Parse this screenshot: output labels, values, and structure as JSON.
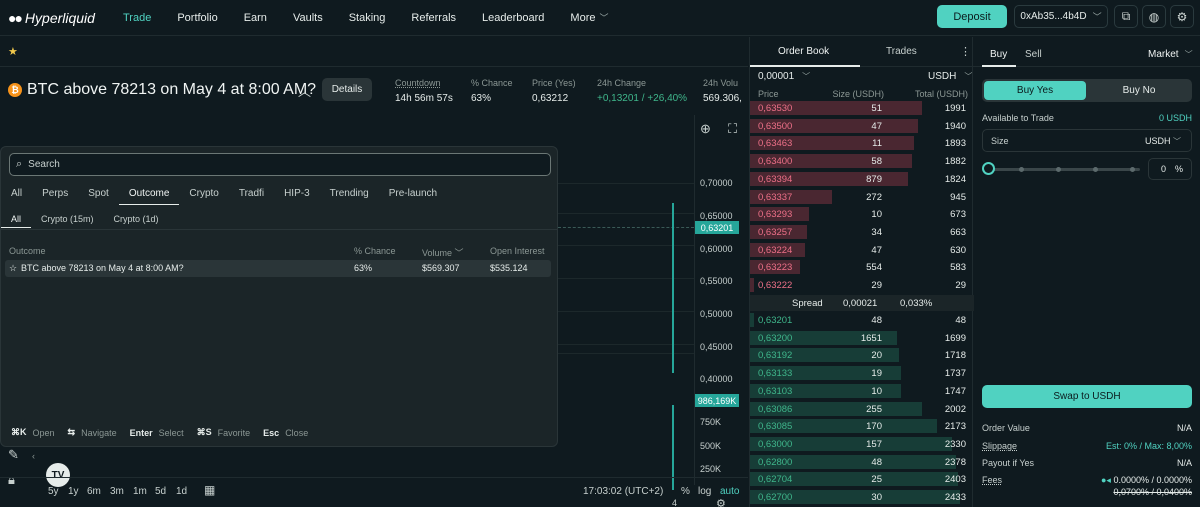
{
  "nav": {
    "brand": "Hyperliquid",
    "items": [
      "Trade",
      "Portfolio",
      "Earn",
      "Vaults",
      "Staking",
      "Referrals",
      "Leaderboard",
      "More"
    ],
    "deposit": "Deposit",
    "wallet": "0xAb35...4b4D",
    "icons": [
      "window-icon",
      "globe-icon",
      "settings-icon"
    ]
  },
  "market": {
    "title": "BTC above 78213 on May 4 at 8:00 AM?",
    "details": "Details",
    "stats": [
      {
        "label": "Countdown",
        "value": "14h 56m 57s"
      },
      {
        "label": "% Chance",
        "value": "63%"
      },
      {
        "label": "Price (Yes)",
        "value": "0,63212"
      },
      {
        "label": "24h Change",
        "value": "+0,13201 / +26,40%"
      },
      {
        "label": "24h Volu",
        "value": "569.306,"
      }
    ]
  },
  "chart": {
    "price_ticks": [
      "0,70000",
      "0,65000",
      "0,60000",
      "0,55000",
      "0,50000",
      "0,45000",
      "0,40000"
    ],
    "last_price": "0,63201",
    "volume_badge": "986,169K",
    "volume_ticks": [
      "750K",
      "500K",
      "250K"
    ],
    "x_tick": "4",
    "ranges": [
      "5y",
      "1y",
      "6m",
      "3m",
      "1m",
      "5d",
      "1d"
    ],
    "clock": "17:03:02 (UTC+2)",
    "percent": "%",
    "log": "log",
    "auto": "auto"
  },
  "search": {
    "placeholder": "Search",
    "categories": [
      "All",
      "Perps",
      "Spot",
      "Outcome",
      "Crypto",
      "Tradfi",
      "HIP-3",
      "Trending",
      "Pre-launch"
    ],
    "subcategories": [
      "All",
      "Crypto (15m)",
      "Crypto (1d)"
    ],
    "columns": [
      "Outcome",
      "% Chance",
      "Volume",
      "Open Interest"
    ],
    "result": {
      "name": "BTC above 78213 on May 4 at 8:00 AM?",
      "chance": "63%",
      "volume": "$569.307",
      "open_interest": "$535.124"
    },
    "shortcuts": [
      {
        "key": "⌘K",
        "label": "Open"
      },
      {
        "key": "⇆",
        "label": "Navigate"
      },
      {
        "key": "Enter",
        "label": "Select"
      },
      {
        "key": "⌘S",
        "label": "Favorite"
      },
      {
        "key": "Esc",
        "label": "Close"
      }
    ]
  },
  "orderbook": {
    "tabs": [
      "Order Book",
      "Trades"
    ],
    "tick_size": "0,00001",
    "unit": "USDH",
    "headers": [
      "Price",
      "Size (USDH)",
      "Total (USDH)"
    ],
    "asks": [
      {
        "price": "0,63530",
        "size": "51",
        "total": "1991",
        "depth": 0.82
      },
      {
        "price": "0,63500",
        "size": "47",
        "total": "1940",
        "depth": 0.8
      },
      {
        "price": "0,63463",
        "size": "11",
        "total": "1893",
        "depth": 0.78
      },
      {
        "price": "0,63400",
        "size": "58",
        "total": "1882",
        "depth": 0.77
      },
      {
        "price": "0,63394",
        "size": "879",
        "total": "1824",
        "depth": 0.75
      },
      {
        "price": "0,63337",
        "size": "272",
        "total": "945",
        "depth": 0.39
      },
      {
        "price": "0,63293",
        "size": "10",
        "total": "673",
        "depth": 0.28
      },
      {
        "price": "0,63257",
        "size": "34",
        "total": "663",
        "depth": 0.27
      },
      {
        "price": "0,63224",
        "size": "47",
        "total": "630",
        "depth": 0.26
      },
      {
        "price": "0,63223",
        "size": "554",
        "total": "583",
        "depth": 0.24
      },
      {
        "price": "0,63222",
        "size": "29",
        "total": "29",
        "depth": 0.01
      }
    ],
    "spread": {
      "label": "Spread",
      "value": "0,00021",
      "percent": "0,033%"
    },
    "bids": [
      {
        "price": "0,63201",
        "size": "48",
        "total": "48",
        "depth": 0.02
      },
      {
        "price": "0,63200",
        "size": "1651",
        "total": "1699",
        "depth": 0.7
      },
      {
        "price": "0,63192",
        "size": "20",
        "total": "1718",
        "depth": 0.71
      },
      {
        "price": "0,63133",
        "size": "19",
        "total": "1737",
        "depth": 0.72
      },
      {
        "price": "0,63103",
        "size": "10",
        "total": "1747",
        "depth": 0.72
      },
      {
        "price": "0,63086",
        "size": "255",
        "total": "2002",
        "depth": 0.82
      },
      {
        "price": "0,63085",
        "size": "170",
        "total": "2173",
        "depth": 0.89
      },
      {
        "price": "0,63000",
        "size": "157",
        "total": "2330",
        "depth": 0.96
      },
      {
        "price": "0,62800",
        "size": "48",
        "total": "2378",
        "depth": 0.98
      },
      {
        "price": "0,62704",
        "size": "25",
        "total": "2403",
        "depth": 0.99
      },
      {
        "price": "0,62700",
        "size": "30",
        "total": "2433",
        "depth": 1.0
      }
    ]
  },
  "trade": {
    "tabs": [
      "Buy",
      "Sell"
    ],
    "order_type": "Market",
    "buy_yes": "Buy Yes",
    "buy_no": "Buy No",
    "available_label": "Available to Trade",
    "available_value": "0 USDH",
    "size_label": "Size",
    "size_unit": "USDH",
    "slider_percent": "0",
    "percent_unit": "%",
    "swap": "Swap to USDH",
    "order_value_label": "Order Value",
    "order_value": "N/A",
    "slippage_label": "Slippage",
    "slippage_value": "Est: 0% / Max: 8,00%",
    "payout_label": "Payout if Yes",
    "payout_value": "N/A",
    "fees_label": "Fees",
    "fees_value": "0.0000% / 0.0000%",
    "fees_old": "0,0700% / 0,0400%"
  }
}
